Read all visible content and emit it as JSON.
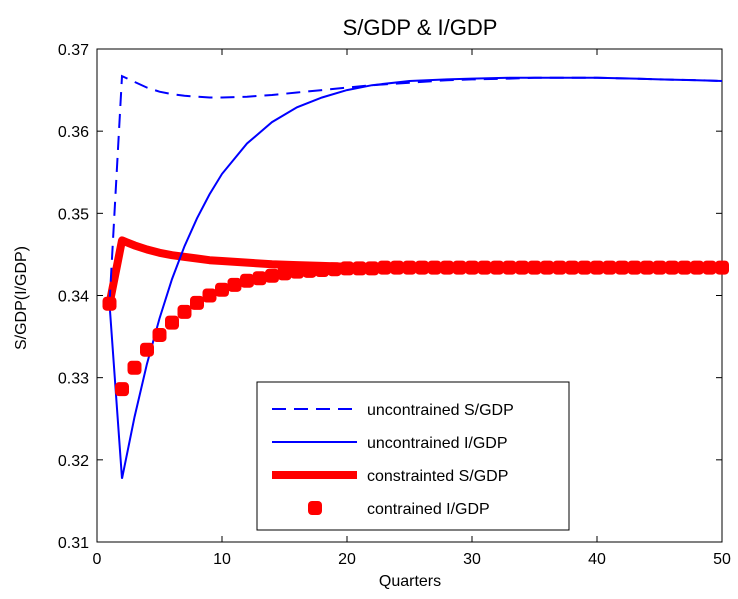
{
  "chart_data": {
    "type": "line",
    "title": "S/GDP & I/GDP",
    "xlabel": "Quarters",
    "ylabel": "S/GDP(I/GDP)",
    "xlim": [
      0,
      50
    ],
    "ylim": [
      0.31,
      0.37
    ],
    "xticks": [
      0,
      10,
      20,
      30,
      40,
      50
    ],
    "yticks": [
      0.31,
      0.32,
      0.33,
      0.34,
      0.35,
      0.36,
      0.37
    ],
    "grid": false,
    "legend_position": "bottom-center",
    "series": [
      {
        "name": "uncontrained S/GDP",
        "style": "dashed",
        "color": "#0000ff",
        "x": [
          1,
          2,
          3,
          4,
          5,
          6,
          7,
          8,
          9,
          10,
          12,
          14,
          16,
          18,
          20,
          22,
          25,
          28,
          30,
          33,
          35,
          38,
          40,
          43,
          45,
          48,
          50
        ],
        "y": [
          0.339,
          0.3667,
          0.366,
          0.3653,
          0.3648,
          0.3645,
          0.3643,
          0.3642,
          0.3641,
          0.3641,
          0.3642,
          0.3644,
          0.3647,
          0.365,
          0.3653,
          0.3656,
          0.3659,
          0.3662,
          0.3663,
          0.3664,
          0.3665,
          0.3665,
          0.3665,
          0.3664,
          0.3663,
          0.3662,
          0.3661
        ]
      },
      {
        "name": "uncontrained I/GDP",
        "style": "solid",
        "color": "#0000ff",
        "x": [
          1,
          2,
          3,
          4,
          5,
          6,
          7,
          8,
          9,
          10,
          12,
          14,
          16,
          18,
          20,
          22,
          25,
          28,
          30,
          33,
          35,
          38,
          40,
          43,
          45,
          48,
          50
        ],
        "y": [
          0.339,
          0.3177,
          0.3252,
          0.3317,
          0.3372,
          0.342,
          0.346,
          0.3494,
          0.3523,
          0.3548,
          0.3585,
          0.3611,
          0.3629,
          0.3641,
          0.365,
          0.3656,
          0.3661,
          0.3663,
          0.3664,
          0.3665,
          0.3665,
          0.3665,
          0.3665,
          0.3664,
          0.3663,
          0.3662,
          0.3661
        ]
      },
      {
        "name": "constrainted S/GDP",
        "style": "thick-solid",
        "color": "#ff0000",
        "x": [
          1,
          2,
          3,
          4,
          5,
          6,
          7,
          8,
          9,
          10,
          12,
          14,
          16,
          18,
          20,
          22,
          25,
          30,
          35,
          40,
          45,
          50
        ],
        "y": [
          0.339,
          0.3467,
          0.3461,
          0.3456,
          0.3452,
          0.3449,
          0.3447,
          0.3445,
          0.3443,
          0.3442,
          0.344,
          0.3438,
          0.3437,
          0.3436,
          0.3435,
          0.3435,
          0.3434,
          0.3434,
          0.3434,
          0.3434,
          0.3434,
          0.3434
        ]
      },
      {
        "name": "contrained I/GDP",
        "style": "markers",
        "color": "#ff0000",
        "x": [
          1,
          2,
          3,
          4,
          5,
          6,
          7,
          8,
          9,
          10,
          11,
          12,
          13,
          14,
          15,
          16,
          17,
          18,
          19,
          20,
          21,
          22,
          23,
          24,
          25,
          26,
          27,
          28,
          29,
          30,
          31,
          32,
          33,
          34,
          35,
          36,
          37,
          38,
          39,
          40,
          41,
          42,
          43,
          44,
          45,
          46,
          47,
          48,
          49,
          50
        ],
        "y": [
          0.339,
          0.3286,
          0.3312,
          0.3334,
          0.3352,
          0.3367,
          0.338,
          0.3391,
          0.34,
          0.3407,
          0.3413,
          0.3418,
          0.3421,
          0.3424,
          0.3427,
          0.3429,
          0.343,
          0.3431,
          0.3432,
          0.3433,
          0.3433,
          0.3433,
          0.3434,
          0.3434,
          0.3434,
          0.3434,
          0.3434,
          0.3434,
          0.3434,
          0.3434,
          0.3434,
          0.3434,
          0.3434,
          0.3434,
          0.3434,
          0.3434,
          0.3434,
          0.3434,
          0.3434,
          0.3434,
          0.3434,
          0.3434,
          0.3434,
          0.3434,
          0.3434,
          0.3434,
          0.3434,
          0.3434,
          0.3434,
          0.3434
        ]
      }
    ]
  }
}
